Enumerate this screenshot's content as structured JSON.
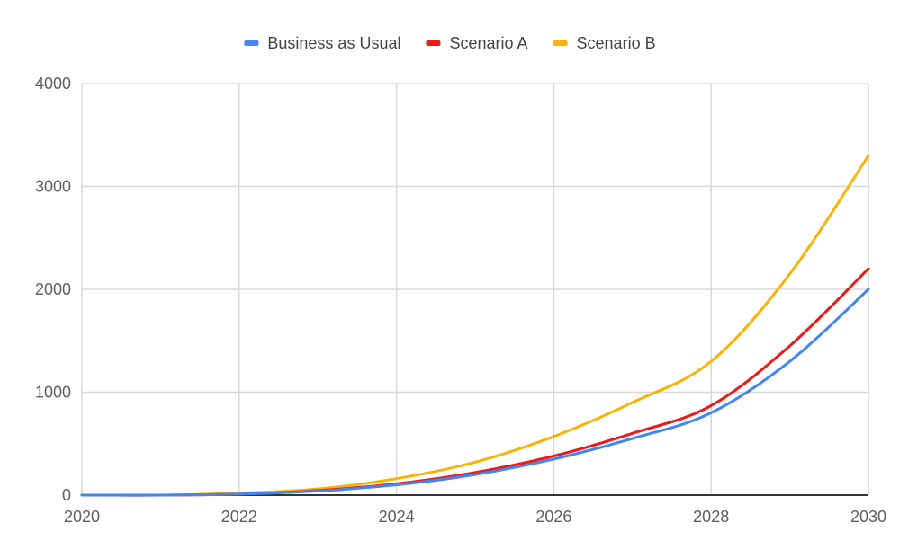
{
  "chart_data": {
    "type": "line",
    "title": "",
    "xlabel": "",
    "ylabel": "",
    "x": [
      2020,
      2021,
      2022,
      2023,
      2024,
      2025,
      2026,
      2027,
      2028,
      2029,
      2030
    ],
    "xticks": [
      "2020",
      "2022",
      "2024",
      "2026",
      "2028",
      "2030"
    ],
    "yticks": [
      "0",
      "1000",
      "2000",
      "3000",
      "4000"
    ],
    "xlim": [
      2020,
      2030
    ],
    "ylim": [
      0,
      4000
    ],
    "grid": true,
    "legend_position": "top",
    "series": [
      {
        "name": "Business as Usual",
        "color": "#4285f4",
        "values": [
          0,
          0,
          10,
          40,
          100,
          200,
          350,
          550,
          800,
          1300,
          2000
        ]
      },
      {
        "name": "Scenario A",
        "color": "#ea1a1a",
        "values": [
          0,
          0,
          10,
          45,
          110,
          220,
          380,
          600,
          870,
          1450,
          2200
        ]
      },
      {
        "name": "Scenario B",
        "color": "#f9b300",
        "values": [
          0,
          0,
          20,
          60,
          160,
          320,
          570,
          900,
          1300,
          2150,
          3300
        ]
      }
    ]
  }
}
